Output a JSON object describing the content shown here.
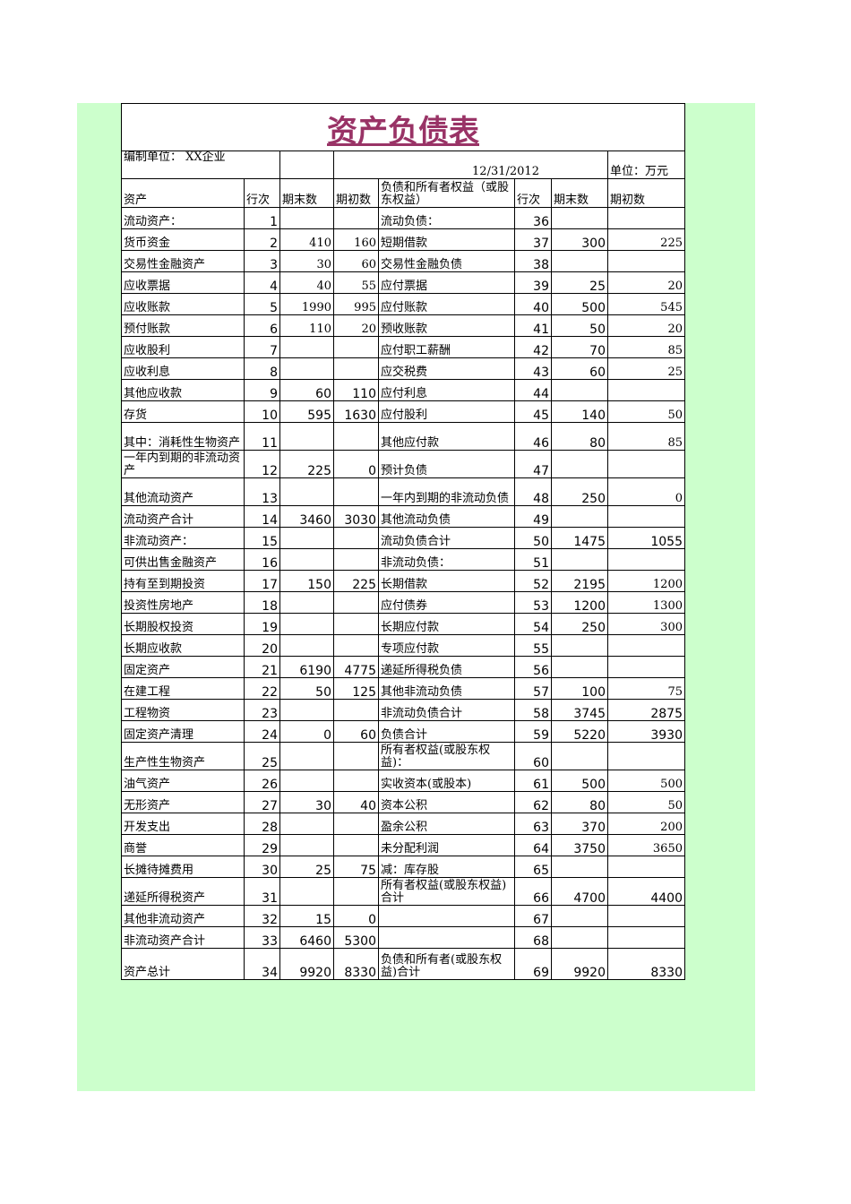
{
  "title": "资产负债表",
  "org_label": "编制单位：  XX企业",
  "date": "12/31/2012",
  "unit": "单位：万元",
  "headers": [
    "资产",
    "行次",
    "期末数",
    "期初数",
    "负债和所有者权益（或股东权益）",
    "行次",
    "期末数",
    "期初数"
  ],
  "rows": [
    [
      "流动资产：",
      "1",
      "",
      "",
      "流动负债：",
      "36",
      "",
      ""
    ],
    [
      "货币资金",
      "2",
      "410",
      "160",
      "短期借款",
      "37",
      "300",
      "225"
    ],
    [
      "交易性金融资产",
      "3",
      "30",
      "60",
      "交易性金融负债",
      "38",
      "",
      ""
    ],
    [
      "应收票据",
      "4",
      "40",
      "55",
      "应付票据",
      "39",
      "25",
      "20"
    ],
    [
      "应收账款",
      "5",
      "1990",
      "995",
      "应付账款",
      "40",
      "500",
      "545"
    ],
    [
      "预付账款",
      "6",
      "110",
      "20",
      "预收账款",
      "41",
      "50",
      "20"
    ],
    [
      "应收股利",
      "7",
      "",
      "",
      "应付职工薪酬",
      "42",
      "70",
      "85"
    ],
    [
      "应收利息",
      "8",
      "",
      "",
      "应交税费",
      "43",
      "60",
      "25"
    ],
    [
      "其他应收款",
      "9",
      "60",
      "110",
      "应付利息",
      "44",
      "",
      ""
    ],
    [
      "存货",
      "10",
      "595",
      "1630",
      "应付股利",
      "45",
      "140",
      "50"
    ],
    [
      "其中：消耗性生物资产",
      "11",
      "",
      "",
      "其他应付款",
      "46",
      "80",
      "85"
    ],
    [
      "一年内到期的非流动资产",
      "12",
      "225",
      "0",
      "预计负债",
      "47",
      "",
      ""
    ],
    [
      "其他流动资产",
      "13",
      "",
      "",
      "一年内到期的非流动负债",
      "48",
      "250",
      "0"
    ],
    [
      "流动资产合计",
      "14",
      "3460",
      "3030",
      "其他流动负债",
      "49",
      "",
      ""
    ],
    [
      "非流动资产：",
      "15",
      "",
      "",
      "流动负债合计",
      "50",
      "1475",
      "1055"
    ],
    [
      "可供出售金融资产",
      "16",
      "",
      "",
      "非流动负债：",
      "51",
      "",
      ""
    ],
    [
      "持有至到期投资",
      "17",
      "150",
      "225",
      "长期借款",
      "52",
      "2195",
      "1200"
    ],
    [
      "投资性房地产",
      "18",
      "",
      "",
      "应付债券",
      "53",
      "1200",
      "1300"
    ],
    [
      "长期股权投资",
      "19",
      "",
      "",
      "长期应付款",
      "54",
      "250",
      "300"
    ],
    [
      "长期应收款",
      "20",
      "",
      "",
      "专项应付款",
      "55",
      "",
      ""
    ],
    [
      "固定资产",
      "21",
      "6190",
      "4775",
      "递延所得税负债",
      "56",
      "",
      ""
    ],
    [
      "在建工程",
      "22",
      "50",
      "125",
      "其他非流动负债",
      "57",
      "100",
      "75"
    ],
    [
      "工程物资",
      "23",
      "",
      "",
      "非流动负债合计",
      "58",
      "3745",
      "2875"
    ],
    [
      "固定资产清理",
      "24",
      "0",
      "60",
      "负债合计",
      "59",
      "5220",
      "3930"
    ],
    [
      "生产性生物资产",
      "25",
      "",
      "",
      "所有者权益(或股东权益)：",
      "60",
      "",
      ""
    ],
    [
      "油气资产",
      "26",
      "",
      "",
      "实收资本(或股本)",
      "61",
      "500",
      "500"
    ],
    [
      "无形资产",
      "27",
      "30",
      "40",
      "资本公积",
      "62",
      "80",
      "50"
    ],
    [
      "开发支出",
      "28",
      "",
      "",
      "盈余公积",
      "63",
      "370",
      "200"
    ],
    [
      "商誉",
      "29",
      "",
      "",
      "未分配利润",
      "64",
      "3750",
      "3650"
    ],
    [
      "长摊待摊费用",
      "30",
      "25",
      "75",
      "减：库存股",
      "65",
      "",
      ""
    ],
    [
      "递延所得税资产",
      "31",
      "",
      "",
      "所有者权益(或股东权益)合计",
      "66",
      "4700",
      "4400"
    ],
    [
      "其他非流动资产",
      "32",
      "15",
      "0",
      "",
      "67",
      "",
      ""
    ],
    [
      "非流动资产合计",
      "33",
      "6460",
      "5300",
      "",
      "68",
      "",
      ""
    ],
    [
      "资产总计",
      "34",
      "9920",
      "8330",
      "负债和所有者(或股东权益)合计",
      "69",
      "9920",
      "8330"
    ]
  ]
}
